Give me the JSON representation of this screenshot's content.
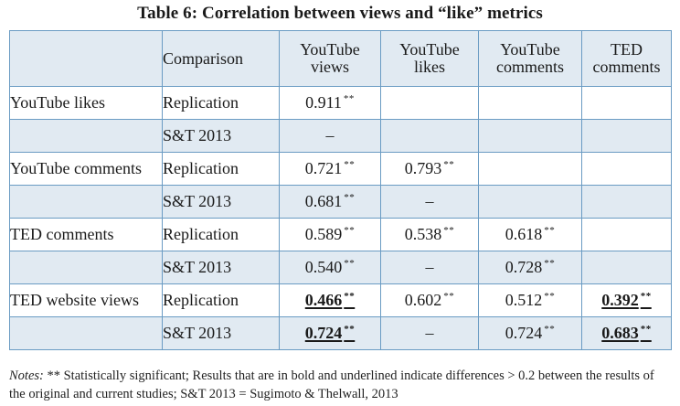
{
  "caption": "Table 6: Correlation between views and “like” metrics",
  "header": {
    "corner": "",
    "comparison": "Comparison",
    "columns": [
      {
        "line1": "YouTube",
        "line2": "views"
      },
      {
        "line1": "YouTube",
        "line2": "likes"
      },
      {
        "line1": "YouTube",
        "line2": "comments"
      },
      {
        "line1": "TED",
        "line2": "comments"
      }
    ]
  },
  "rows": [
    {
      "label": "YouTube likes",
      "comparison": "Replication",
      "cells": [
        {
          "v": "0.911",
          "sig": "**",
          "em": false
        },
        {
          "v": ""
        },
        {
          "v": ""
        },
        {
          "v": ""
        }
      ]
    },
    {
      "label": "",
      "comparison": "S&T 2013",
      "cells": [
        {
          "v": "–"
        },
        {
          "v": ""
        },
        {
          "v": ""
        },
        {
          "v": ""
        }
      ]
    },
    {
      "label": "YouTube comments",
      "comparison": "Replication",
      "cells": [
        {
          "v": "0.721",
          "sig": "**"
        },
        {
          "v": "0.793",
          "sig": "**"
        },
        {
          "v": ""
        },
        {
          "v": ""
        }
      ]
    },
    {
      "label": "",
      "comparison": "S&T 2013",
      "cells": [
        {
          "v": "0.681",
          "sig": "**"
        },
        {
          "v": "–"
        },
        {
          "v": ""
        },
        {
          "v": ""
        }
      ]
    },
    {
      "label": "TED comments",
      "comparison": "Replication",
      "cells": [
        {
          "v": "0.589",
          "sig": "**"
        },
        {
          "v": "0.538",
          "sig": "**"
        },
        {
          "v": "0.618",
          "sig": "**"
        },
        {
          "v": ""
        }
      ]
    },
    {
      "label": "",
      "comparison": "S&T 2013",
      "cells": [
        {
          "v": "0.540",
          "sig": "**"
        },
        {
          "v": "–"
        },
        {
          "v": "0.728",
          "sig": "**"
        },
        {
          "v": ""
        }
      ]
    },
    {
      "label": "TED website views",
      "comparison": "Replication",
      "cells": [
        {
          "v": "0.466",
          "sig": "**",
          "em": true
        },
        {
          "v": "0.602",
          "sig": "**"
        },
        {
          "v": "0.512",
          "sig": "**"
        },
        {
          "v": "0.392",
          "sig": "**",
          "em": true
        }
      ]
    },
    {
      "label": "",
      "comparison": "S&T 2013",
      "cells": [
        {
          "v": "0.724",
          "sig": "**",
          "em": true
        },
        {
          "v": "–"
        },
        {
          "v": "0.724",
          "sig": "**"
        },
        {
          "v": "0.683",
          "sig": "**",
          "em": true
        }
      ]
    }
  ],
  "notes": {
    "label": "Notes:",
    "text": " ** Statistically significant; Results that are in bold and underlined indicate differences > 0.2 between the results of the original and current studies; S&T 2013 = Sugimoto & Thelwall, 2013"
  },
  "colors": {
    "border": "#6a9bc3",
    "shade": "#e1eaf2"
  }
}
